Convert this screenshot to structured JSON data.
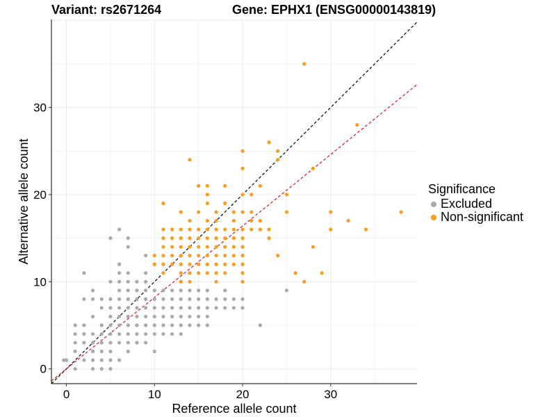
{
  "header": {
    "variant_title": "Variant: rs2671264",
    "gene_title": "Gene: EPHX1 (ENSG00000143819)"
  },
  "legend": {
    "title": "Significance",
    "items": [
      {
        "label": "Excluded",
        "color": "#a9a9a9"
      },
      {
        "label": "Non-significant",
        "color": "#ff9b1a"
      }
    ]
  },
  "chart_data": {
    "type": "scatter",
    "xlabel": "Reference allele count",
    "ylabel": "Alternative allele count",
    "xlim": [
      -1.7,
      39.8
    ],
    "ylim": [
      -1.7,
      40.1
    ],
    "xticks": [
      0,
      10,
      20,
      30
    ],
    "yticks": [
      0,
      10,
      20,
      30
    ],
    "grid": true,
    "legend_position": "right",
    "reference_lines": [
      {
        "name": "identity",
        "slope": 1,
        "intercept": 0,
        "color": "#000000",
        "style": "dashed"
      },
      {
        "name": "fit",
        "slope": 0.82,
        "intercept": 0,
        "color": "#e8121b",
        "style": "dashed"
      }
    ],
    "series": [
      {
        "name": "Excluded",
        "color": "#a9a9a9",
        "points": [
          [
            -0.3,
            1
          ],
          [
            0,
            1
          ],
          [
            1,
            5
          ],
          [
            1,
            4
          ],
          [
            1,
            2
          ],
          [
            1,
            3
          ],
          [
            1,
            0
          ],
          [
            2,
            11
          ],
          [
            2,
            8
          ],
          [
            2,
            5
          ],
          [
            2,
            4
          ],
          [
            2,
            3
          ],
          [
            2,
            1
          ],
          [
            3,
            9
          ],
          [
            3,
            8
          ],
          [
            3,
            6
          ],
          [
            3,
            4
          ],
          [
            3,
            3
          ],
          [
            3,
            2
          ],
          [
            3,
            1
          ],
          [
            3,
            0
          ],
          [
            4,
            8
          ],
          [
            4,
            7
          ],
          [
            4,
            5
          ],
          [
            4,
            4
          ],
          [
            4,
            3
          ],
          [
            4,
            2
          ],
          [
            4,
            1
          ],
          [
            4,
            0
          ],
          [
            5,
            15
          ],
          [
            5,
            10
          ],
          [
            5,
            8
          ],
          [
            5,
            7
          ],
          [
            5,
            6
          ],
          [
            5,
            5
          ],
          [
            5,
            4
          ],
          [
            5,
            3
          ],
          [
            5,
            2
          ],
          [
            5,
            1
          ],
          [
            5,
            0
          ],
          [
            6,
            16
          ],
          [
            6,
            12
          ],
          [
            6,
            11
          ],
          [
            6,
            10
          ],
          [
            6,
            9
          ],
          [
            6,
            8
          ],
          [
            6,
            7
          ],
          [
            6,
            6
          ],
          [
            6,
            5
          ],
          [
            6,
            4
          ],
          [
            6,
            3
          ],
          [
            6,
            1
          ],
          [
            7,
            15
          ],
          [
            7,
            14
          ],
          [
            7,
            11
          ],
          [
            7,
            10
          ],
          [
            7,
            9
          ],
          [
            7,
            8
          ],
          [
            7,
            7
          ],
          [
            7,
            6
          ],
          [
            7,
            5
          ],
          [
            7,
            4
          ],
          [
            7,
            3
          ],
          [
            7,
            2
          ],
          [
            8,
            10
          ],
          [
            8,
            9
          ],
          [
            8,
            8
          ],
          [
            8,
            7
          ],
          [
            8,
            6
          ],
          [
            8,
            5
          ],
          [
            8,
            4
          ],
          [
            8,
            3
          ],
          [
            9,
            13
          ],
          [
            9,
            11
          ],
          [
            9,
            10
          ],
          [
            9,
            9
          ],
          [
            9,
            8
          ],
          [
            9,
            7
          ],
          [
            9,
            6
          ],
          [
            9,
            5
          ],
          [
            9,
            4
          ],
          [
            9,
            3
          ],
          [
            10,
            12
          ],
          [
            10,
            9
          ],
          [
            10,
            8
          ],
          [
            10,
            7
          ],
          [
            10,
            6
          ],
          [
            10,
            5
          ],
          [
            10,
            4
          ],
          [
            10,
            2
          ],
          [
            11,
            9
          ],
          [
            11,
            8
          ],
          [
            11,
            7
          ],
          [
            11,
            6
          ],
          [
            11,
            5
          ],
          [
            11,
            4
          ],
          [
            12,
            9
          ],
          [
            12,
            8
          ],
          [
            12,
            7
          ],
          [
            12,
            6
          ],
          [
            12,
            5
          ],
          [
            12,
            4
          ],
          [
            13,
            10
          ],
          [
            13,
            9
          ],
          [
            13,
            8
          ],
          [
            13,
            7
          ],
          [
            13,
            6
          ],
          [
            13,
            5
          ],
          [
            13,
            4
          ],
          [
            14,
            9
          ],
          [
            14,
            8
          ],
          [
            14,
            7
          ],
          [
            14,
            6
          ],
          [
            14,
            5
          ],
          [
            15,
            9
          ],
          [
            15,
            8
          ],
          [
            15,
            7
          ],
          [
            15,
            6
          ],
          [
            15,
            5
          ],
          [
            16,
            9
          ],
          [
            16,
            8
          ],
          [
            16,
            7
          ],
          [
            16,
            6
          ],
          [
            16,
            5
          ],
          [
            17,
            8
          ],
          [
            17,
            7
          ],
          [
            18,
            9
          ],
          [
            18,
            8
          ],
          [
            18,
            7
          ],
          [
            19,
            8
          ],
          [
            19,
            7
          ],
          [
            20,
            7
          ],
          [
            20,
            8
          ],
          [
            22,
            5
          ],
          [
            25,
            9
          ]
        ]
      },
      {
        "name": "Non-significant",
        "color": "#ff9b1a",
        "points": [
          [
            27,
            35
          ],
          [
            23,
            26
          ],
          [
            20,
            25
          ],
          [
            24,
            25
          ],
          [
            33,
            28
          ],
          [
            20,
            23
          ],
          [
            24,
            24
          ],
          [
            14,
            24
          ],
          [
            28,
            23
          ],
          [
            16,
            21
          ],
          [
            15,
            21
          ],
          [
            18,
            21
          ],
          [
            22,
            21
          ],
          [
            16,
            20
          ],
          [
            20,
            20
          ],
          [
            21,
            20
          ],
          [
            16,
            19
          ],
          [
            11,
            19
          ],
          [
            18,
            19
          ],
          [
            25,
            20
          ],
          [
            19,
            18
          ],
          [
            17,
            18
          ],
          [
            13,
            18
          ],
          [
            15,
            18
          ],
          [
            20,
            18
          ],
          [
            21,
            18
          ],
          [
            25,
            18
          ],
          [
            30,
            18
          ],
          [
            38,
            18
          ],
          [
            14,
            17
          ],
          [
            16,
            17
          ],
          [
            17,
            17
          ],
          [
            19,
            17
          ],
          [
            21,
            17
          ],
          [
            22,
            17
          ],
          [
            32,
            17
          ],
          [
            11,
            16
          ],
          [
            12,
            16
          ],
          [
            13,
            16
          ],
          [
            14,
            16
          ],
          [
            15,
            16
          ],
          [
            16,
            16
          ],
          [
            17,
            16
          ],
          [
            18,
            16
          ],
          [
            19,
            16
          ],
          [
            20,
            16
          ],
          [
            21,
            16
          ],
          [
            22,
            16
          ],
          [
            23,
            16
          ],
          [
            30,
            16
          ],
          [
            34,
            16
          ],
          [
            11,
            15
          ],
          [
            12,
            15
          ],
          [
            13,
            15
          ],
          [
            14,
            15
          ],
          [
            15,
            15
          ],
          [
            16,
            15
          ],
          [
            17,
            15
          ],
          [
            18,
            15
          ],
          [
            19,
            15
          ],
          [
            20,
            15
          ],
          [
            23,
            15
          ],
          [
            11,
            14
          ],
          [
            12,
            14
          ],
          [
            13,
            14
          ],
          [
            14,
            14
          ],
          [
            15,
            14
          ],
          [
            16,
            14
          ],
          [
            17,
            14
          ],
          [
            18,
            14
          ],
          [
            19,
            14
          ],
          [
            20,
            14
          ],
          [
            28,
            14
          ],
          [
            10,
            13
          ],
          [
            11,
            13
          ],
          [
            12,
            13
          ],
          [
            13,
            13
          ],
          [
            14,
            13
          ],
          [
            15,
            13
          ],
          [
            16,
            13
          ],
          [
            17,
            13
          ],
          [
            18,
            13
          ],
          [
            19,
            13
          ],
          [
            20,
            13
          ],
          [
            24,
            13
          ],
          [
            10,
            12
          ],
          [
            11,
            12
          ],
          [
            12,
            12
          ],
          [
            13,
            12
          ],
          [
            14,
            12
          ],
          [
            15,
            12
          ],
          [
            16,
            12
          ],
          [
            17,
            12
          ],
          [
            18,
            12
          ],
          [
            19,
            12
          ],
          [
            20,
            12
          ],
          [
            11,
            11
          ],
          [
            13,
            11
          ],
          [
            14,
            11
          ],
          [
            15,
            11
          ],
          [
            16,
            11
          ],
          [
            17,
            11
          ],
          [
            18,
            11
          ],
          [
            20,
            11
          ],
          [
            26,
            11
          ],
          [
            29,
            11
          ],
          [
            13,
            10
          ],
          [
            14,
            10
          ],
          [
            17,
            10
          ],
          [
            20,
            10
          ],
          [
            27,
            10
          ]
        ]
      }
    ]
  }
}
